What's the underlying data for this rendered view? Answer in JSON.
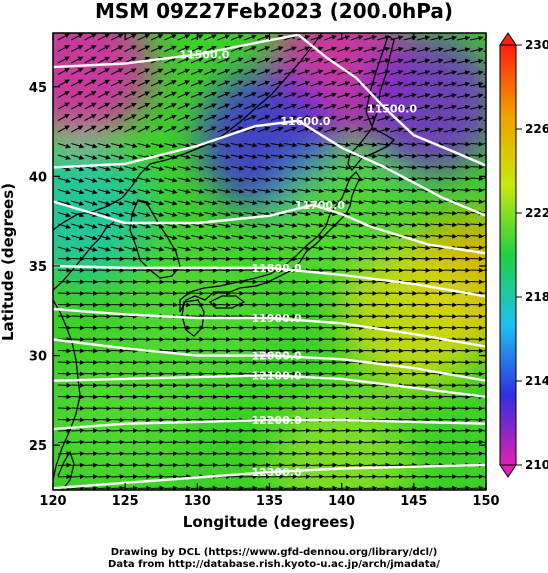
{
  "title": "MSM 09Z27Feb2023 (200.0hPa)",
  "footer": {
    "line1": "Drawing by DCL (https://www.gfd-dennou.org/library/dcl/)",
    "line2": "Data from http://database.rish.kyoto-u.ac.jp/arch/jmadata/"
  },
  "chart_data": {
    "type": "heatmap",
    "xlabel": "Longitude (degrees)",
    "ylabel": "Latitude  (degrees)",
    "xlim": [
      120,
      150
    ],
    "ylim": [
      22.5,
      48
    ],
    "xticks": [
      120,
      125,
      130,
      135,
      140,
      145,
      150
    ],
    "yticks": [
      25,
      30,
      35,
      40,
      45
    ],
    "colorbar": {
      "range": [
        210,
        230
      ],
      "ticks": [
        210,
        214,
        218,
        222,
        226,
        230
      ],
      "colors": [
        "#e020b0",
        "#3030e0",
        "#20c0f0",
        "#20d040",
        "#c8e810",
        "#f0a000",
        "#ff2010"
      ]
    },
    "temperature_field_samples": [
      {
        "lon": 122,
        "lat": 46,
        "value": 210
      },
      {
        "lon": 140,
        "lat": 46,
        "value": 210
      },
      {
        "lon": 146,
        "lat": 44,
        "value": 212
      },
      {
        "lon": 135,
        "lat": 42,
        "value": 213
      },
      {
        "lon": 122,
        "lat": 38,
        "value": 218
      },
      {
        "lon": 140,
        "lat": 37,
        "value": 221
      },
      {
        "lon": 149,
        "lat": 34,
        "value": 226
      },
      {
        "lon": 145,
        "lat": 32,
        "value": 224
      },
      {
        "lon": 130,
        "lat": 32,
        "value": 221
      },
      {
        "lon": 125,
        "lat": 27,
        "value": 221
      },
      {
        "lon": 140,
        "lat": 24,
        "value": 222
      }
    ],
    "contours": [
      {
        "label": "11500.0",
        "value": 11500,
        "points": [
          [
            120,
            46.1
          ],
          [
            125,
            46.3
          ],
          [
            130,
            46.8
          ],
          [
            135,
            47.6
          ],
          [
            137,
            47.9
          ]
        ]
      },
      {
        "label": "11500.0",
        "value": 11500,
        "points": [
          [
            137,
            47.9
          ],
          [
            139,
            46.6
          ],
          [
            141,
            45.5
          ],
          [
            143,
            43.8
          ],
          [
            145,
            42.3
          ],
          [
            148,
            41.3
          ],
          [
            150,
            40.6
          ]
        ]
      },
      {
        "label": "11600.0",
        "value": 11600,
        "points": [
          [
            120,
            40.5
          ],
          [
            125,
            40.7
          ],
          [
            130,
            41.7
          ],
          [
            134,
            42.8
          ],
          [
            137,
            43.1
          ],
          [
            140,
            41.6
          ],
          [
            143,
            40.5
          ],
          [
            147,
            38.8
          ],
          [
            150,
            37.8
          ]
        ]
      },
      {
        "label": "11700.0",
        "value": 11700,
        "points": [
          [
            120,
            38.6
          ],
          [
            125,
            37.4
          ],
          [
            130,
            37.4
          ],
          [
            135,
            37.8
          ],
          [
            138,
            38.4
          ],
          [
            140,
            37.9
          ],
          [
            142,
            37.2
          ],
          [
            146,
            36.2
          ],
          [
            150,
            35.7
          ]
        ]
      },
      {
        "label": "11800.0",
        "value": 11800,
        "points": [
          [
            120,
            35.0
          ],
          [
            125,
            34.9
          ],
          [
            130,
            34.9
          ],
          [
            135,
            34.9
          ],
          [
            140,
            34.5
          ],
          [
            145,
            34.0
          ],
          [
            150,
            33.3
          ]
        ]
      },
      {
        "label": "11900.0",
        "value": 11900,
        "points": [
          [
            120,
            32.6
          ],
          [
            125,
            32.3
          ],
          [
            130,
            32.1
          ],
          [
            135,
            32.1
          ],
          [
            140,
            31.8
          ],
          [
            145,
            31.2
          ],
          [
            150,
            30.5
          ]
        ]
      },
      {
        "label": "12000.0",
        "value": 12000,
        "points": [
          [
            120,
            30.9
          ],
          [
            125,
            30.4
          ],
          [
            130,
            30.0
          ],
          [
            135,
            30.0
          ],
          [
            140,
            29.8
          ],
          [
            145,
            29.3
          ],
          [
            150,
            28.6
          ]
        ]
      },
      {
        "label": "12100.0",
        "value": 12100,
        "points": [
          [
            120,
            28.6
          ],
          [
            125,
            28.7
          ],
          [
            130,
            28.8
          ],
          [
            135,
            28.9
          ],
          [
            140,
            28.7
          ],
          [
            145,
            28.2
          ],
          [
            150,
            27.7
          ]
        ]
      },
      {
        "label": "12200.0",
        "value": 12200,
        "points": [
          [
            120,
            25.9
          ],
          [
            125,
            26.2
          ],
          [
            130,
            26.3
          ],
          [
            135,
            26.4
          ],
          [
            140,
            26.4
          ],
          [
            145,
            26.3
          ],
          [
            150,
            26.2
          ]
        ]
      },
      {
        "label": "12300.0",
        "value": 12300,
        "points": [
          [
            120,
            22.6
          ],
          [
            125,
            22.9
          ],
          [
            130,
            23.2
          ],
          [
            135,
            23.5
          ],
          [
            140,
            23.7
          ],
          [
            145,
            23.8
          ],
          [
            150,
            23.9
          ]
        ]
      }
    ],
    "wind_vectors": "uniform grid of black arrows, mostly westerly (pointing east); ENE in the north near Sakhalin, ESE/east across Japan"
  }
}
